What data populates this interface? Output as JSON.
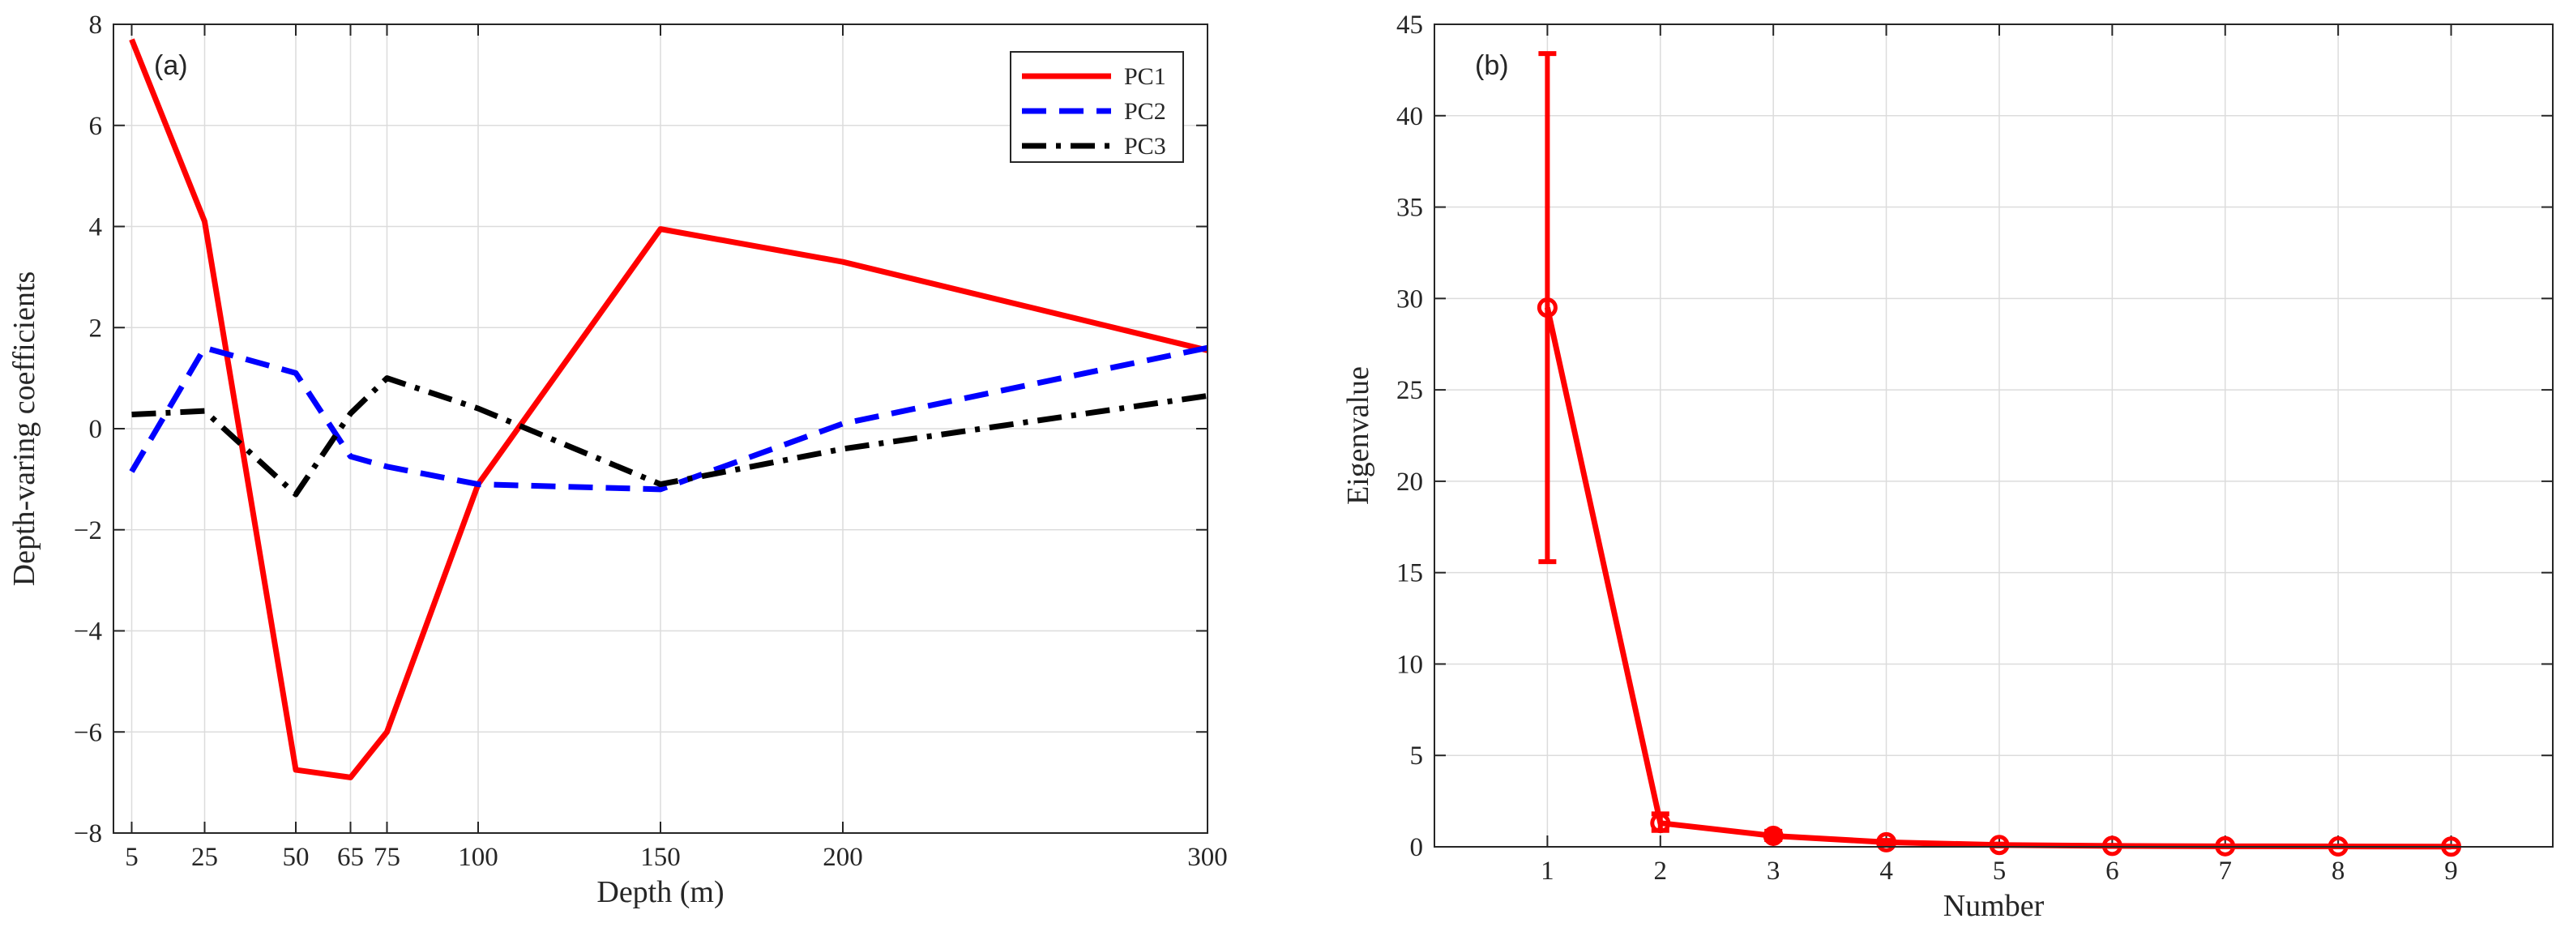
{
  "chart_data": [
    {
      "type": "line",
      "panel_label": "(a)",
      "xlabel": "Depth (m)",
      "ylabel": "Depth-varing coefficients",
      "xlim": [
        0,
        300
      ],
      "ylim": [
        -8,
        8
      ],
      "xticks": [
        5,
        25,
        50,
        65,
        75,
        100,
        150,
        200,
        300
      ],
      "yticks": [
        -8,
        -6,
        -4,
        -2,
        0,
        2,
        4,
        6,
        8
      ],
      "grid": true,
      "legend_position": "top-right",
      "x": [
        5,
        25,
        50,
        65,
        75,
        100,
        150,
        200,
        300
      ],
      "series": [
        {
          "name": "PC1",
          "color": "#ff0000",
          "style": "solid",
          "values": [
            7.7,
            4.1,
            -6.75,
            -6.9,
            -6.0,
            -1.1,
            3.95,
            3.3,
            1.55
          ]
        },
        {
          "name": "PC2",
          "color": "#0000ff",
          "style": "dashed",
          "values": [
            -0.85,
            1.6,
            1.1,
            -0.55,
            -0.75,
            -1.1,
            -1.2,
            0.1,
            1.6
          ]
        },
        {
          "name": "PC3",
          "color": "#000000",
          "style": "dashdot",
          "values": [
            0.28,
            0.35,
            -1.3,
            0.3,
            1.0,
            0.4,
            -1.1,
            -0.4,
            0.65
          ]
        }
      ]
    },
    {
      "type": "line",
      "panel_label": "(b)",
      "xlabel": "Number",
      "ylabel": "Eigenvalue",
      "xlim": [
        0,
        9.9
      ],
      "ylim": [
        0,
        45
      ],
      "xticks": [
        1,
        2,
        3,
        4,
        5,
        6,
        7,
        8,
        9
      ],
      "yticks": [
        0,
        5,
        10,
        15,
        20,
        25,
        30,
        35,
        40,
        45
      ],
      "grid": true,
      "x": [
        1,
        2,
        3,
        4,
        5,
        6,
        7,
        8,
        9
      ],
      "series": [
        {
          "color": "#ff0000",
          "marker": "circle",
          "values": [
            29.5,
            1.3,
            0.6,
            0.25,
            0.1,
            0.05,
            0.03,
            0.02,
            0.01
          ],
          "error_low": [
            15.6,
            0.9,
            0.4,
            0.15,
            0.05,
            0.02,
            0.01,
            0.01,
            0.0
          ],
          "error_high": [
            43.4,
            1.8,
            0.85,
            0.35,
            0.15,
            0.08,
            0.05,
            0.03,
            0.02
          ]
        }
      ]
    }
  ]
}
